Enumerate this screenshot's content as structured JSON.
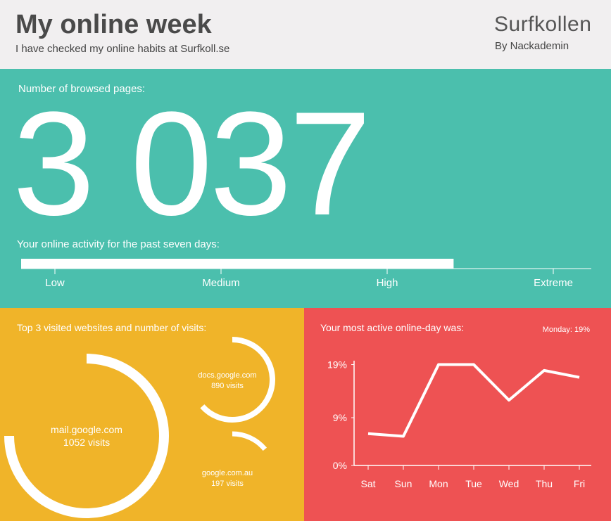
{
  "header": {
    "title": "My online week",
    "subtitle": "I have checked my online habits at Surfkoll.se",
    "logo": "Surfkollen",
    "byline": "By Nackademin"
  },
  "browsed": {
    "label": "Number of browsed pages:",
    "value": 3037,
    "value_label": "3 037"
  },
  "activity": {
    "label": "Your online activity for the past seven days:",
    "levels": [
      "Low",
      "Medium",
      "High",
      "Extreme"
    ],
    "value": 2.4
  },
  "sites": {
    "label": "Top 3 visited websites and number of visits:",
    "items": [
      {
        "name": "mail.google.com",
        "visits": 1052,
        "visits_label": "1052 visits"
      },
      {
        "name": "docs.google.com",
        "visits": 890,
        "visits_label": "890 visits"
      },
      {
        "name": "google.com.au",
        "visits": 197,
        "visits_label": "197 visits"
      }
    ]
  },
  "chart_data": {
    "type": "line",
    "title": "Your most active online-day was:",
    "annotation": "Monday: 19%",
    "categories": [
      "Sat",
      "Sun",
      "Mon",
      "Tue",
      "Wed",
      "Thu",
      "Fri"
    ],
    "series": [
      {
        "name": null,
        "color": "#ffffff",
        "values": [
          6,
          5.5,
          19,
          19,
          12.3,
          17.9,
          16.6
        ]
      }
    ],
    "ylim": [
      0,
      20
    ],
    "yticks": [
      {
        "value": 0,
        "label": "0%"
      },
      {
        "value": 9,
        "label": "9%"
      },
      {
        "value": 19,
        "label": "19%"
      }
    ]
  }
}
